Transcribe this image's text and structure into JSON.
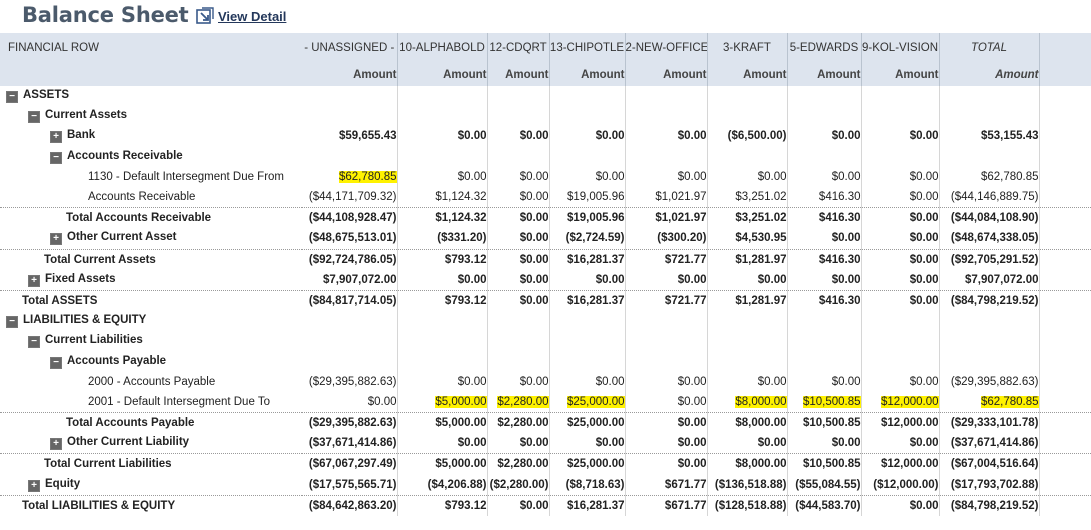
{
  "header": {
    "title": "Balance Sheet",
    "view_detail_label": "View Detail"
  },
  "columns": [
    {
      "name": "FINANCIAL ROW",
      "sub": ""
    },
    {
      "name": "- UNASSIGNED -",
      "sub": "Amount"
    },
    {
      "name": "10-ALPHABOLD",
      "sub": "Amount"
    },
    {
      "name": "12-CDQRT",
      "sub": "Amount"
    },
    {
      "name": "13-CHIPOTLE",
      "sub": "Amount"
    },
    {
      "name": "2-NEW-OFFICE",
      "sub": "Amount"
    },
    {
      "name": "3-KRAFT",
      "sub": "Amount"
    },
    {
      "name": "5-EDWARDS",
      "sub": "Amount"
    },
    {
      "name": "9-KOL-VISION",
      "sub": "Amount"
    },
    {
      "name": "TOTAL",
      "sub": "Amount"
    }
  ],
  "rows": [
    {
      "label": "ASSETS",
      "indent": 0,
      "toggle": "minus",
      "bold": true,
      "total": false,
      "values": [
        "",
        "",
        "",
        "",
        "",
        "",
        "",
        "",
        ""
      ]
    },
    {
      "label": "Current Assets",
      "indent": 1,
      "toggle": "minus",
      "bold": true,
      "total": false,
      "values": [
        "",
        "",
        "",
        "",
        "",
        "",
        "",
        "",
        ""
      ]
    },
    {
      "label": "Bank",
      "indent": 2,
      "toggle": "plus",
      "bold": true,
      "total": false,
      "values": [
        "$59,655.43",
        "$0.00",
        "$0.00",
        "$0.00",
        "$0.00",
        "($6,500.00)",
        "$0.00",
        "$0.00",
        "$53,155.43"
      ]
    },
    {
      "label": "Accounts Receivable",
      "indent": 2,
      "toggle": "minus",
      "bold": true,
      "total": false,
      "values": [
        "",
        "",
        "",
        "",
        "",
        "",
        "",
        "",
        ""
      ]
    },
    {
      "label": "1130 - Default Intersegment Due From",
      "indent": 3,
      "toggle": "",
      "bold": false,
      "total": false,
      "values": [
        "$62,780.85",
        "$0.00",
        "$0.00",
        "$0.00",
        "$0.00",
        "$0.00",
        "$0.00",
        "$0.00",
        "$62,780.85"
      ],
      "highlight": [
        0
      ]
    },
    {
      "label": "Accounts Receivable",
      "indent": 3,
      "toggle": "",
      "bold": false,
      "total": false,
      "values": [
        "($44,171,709.32)",
        "$1,124.32",
        "$0.00",
        "$19,005.96",
        "$1,021.97",
        "$3,251.02",
        "$416.30",
        "$0.00",
        "($44,146,889.75)"
      ]
    },
    {
      "label": "Total Accounts Receivable",
      "indent": 3,
      "toggle": "",
      "bold": true,
      "total": true,
      "values": [
        "($44,108,928.47)",
        "$1,124.32",
        "$0.00",
        "$19,005.96",
        "$1,021.97",
        "$3,251.02",
        "$416.30",
        "$0.00",
        "($44,084,108.90)"
      ]
    },
    {
      "label": "Other Current Asset",
      "indent": 2,
      "toggle": "plus",
      "bold": true,
      "total": false,
      "values": [
        "($48,675,513.01)",
        "($331.20)",
        "$0.00",
        "($2,724.59)",
        "($300.20)",
        "$4,530.95",
        "$0.00",
        "$0.00",
        "($48,674,338.05)"
      ]
    },
    {
      "label": "Total Current Assets",
      "indent": 2,
      "toggle": "",
      "bold": true,
      "total": true,
      "values": [
        "($92,724,786.05)",
        "$793.12",
        "$0.00",
        "$16,281.37",
        "$721.77",
        "$1,281.97",
        "$416.30",
        "$0.00",
        "($92,705,291.52)"
      ]
    },
    {
      "label": "Fixed Assets",
      "indent": 1,
      "toggle": "plus",
      "bold": true,
      "total": false,
      "values": [
        "$7,907,072.00",
        "$0.00",
        "$0.00",
        "$0.00",
        "$0.00",
        "$0.00",
        "$0.00",
        "$0.00",
        "$7,907,072.00"
      ]
    },
    {
      "label": "Total ASSETS",
      "indent": 1,
      "toggle": "",
      "bold": true,
      "total": true,
      "values": [
        "($84,817,714.05)",
        "$793.12",
        "$0.00",
        "$16,281.37",
        "$721.77",
        "$1,281.97",
        "$416.30",
        "$0.00",
        "($84,798,219.52)"
      ]
    },
    {
      "label": "LIABILITIES & EQUITY",
      "indent": 0,
      "toggle": "minus",
      "bold": true,
      "total": false,
      "values": [
        "",
        "",
        "",
        "",
        "",
        "",
        "",
        "",
        ""
      ]
    },
    {
      "label": "Current Liabilities",
      "indent": 1,
      "toggle": "minus",
      "bold": true,
      "total": false,
      "values": [
        "",
        "",
        "",
        "",
        "",
        "",
        "",
        "",
        ""
      ]
    },
    {
      "label": "Accounts Payable",
      "indent": 2,
      "toggle": "minus",
      "bold": true,
      "total": false,
      "values": [
        "",
        "",
        "",
        "",
        "",
        "",
        "",
        "",
        ""
      ]
    },
    {
      "label": "2000 - Accounts Payable",
      "indent": 3,
      "toggle": "",
      "bold": false,
      "total": false,
      "values": [
        "($29,395,882.63)",
        "$0.00",
        "$0.00",
        "$0.00",
        "$0.00",
        "$0.00",
        "$0.00",
        "$0.00",
        "($29,395,882.63)"
      ]
    },
    {
      "label": "2001 - Default Intersegment Due To",
      "indent": 3,
      "toggle": "",
      "bold": false,
      "total": false,
      "values": [
        "$0.00",
        "$5,000.00",
        "$2,280.00",
        "$25,000.00",
        "$0.00",
        "$8,000.00",
        "$10,500.85",
        "$12,000.00",
        "$62,780.85"
      ],
      "highlight": [
        1,
        2,
        3,
        5,
        6,
        7,
        8
      ]
    },
    {
      "label": "Total Accounts Payable",
      "indent": 3,
      "toggle": "",
      "bold": true,
      "total": true,
      "values": [
        "($29,395,882.63)",
        "$5,000.00",
        "$2,280.00",
        "$25,000.00",
        "$0.00",
        "$8,000.00",
        "$10,500.85",
        "$12,000.00",
        "($29,333,101.78)"
      ]
    },
    {
      "label": "Other Current Liability",
      "indent": 2,
      "toggle": "plus",
      "bold": true,
      "total": false,
      "values": [
        "($37,671,414.86)",
        "$0.00",
        "$0.00",
        "$0.00",
        "$0.00",
        "$0.00",
        "$0.00",
        "$0.00",
        "($37,671,414.86)"
      ]
    },
    {
      "label": "Total Current Liabilities",
      "indent": 2,
      "toggle": "",
      "bold": true,
      "total": true,
      "values": [
        "($67,067,297.49)",
        "$5,000.00",
        "$2,280.00",
        "$25,000.00",
        "$0.00",
        "$8,000.00",
        "$10,500.85",
        "$12,000.00",
        "($67,004,516.64)"
      ]
    },
    {
      "label": "Equity",
      "indent": 1,
      "toggle": "plus",
      "bold": true,
      "total": false,
      "values": [
        "($17,575,565.71)",
        "($4,206.88)",
        "($2,280.00)",
        "($8,718.63)",
        "$671.77",
        "($136,518.88)",
        "($55,084.55)",
        "($12,000.00)",
        "($17,793,702.88)"
      ]
    },
    {
      "label": "Total LIABILITIES & EQUITY",
      "indent": 1,
      "toggle": "",
      "bold": true,
      "total": true,
      "values": [
        "($84,642,863.20)",
        "$793.12",
        "$0.00",
        "$16,281.37",
        "$671.77",
        "($128,518.88)",
        "($44,583.70)",
        "$0.00",
        "($84,798,219.52)"
      ]
    }
  ],
  "toggle_glyphs": {
    "minus": "−",
    "plus": "+"
  }
}
